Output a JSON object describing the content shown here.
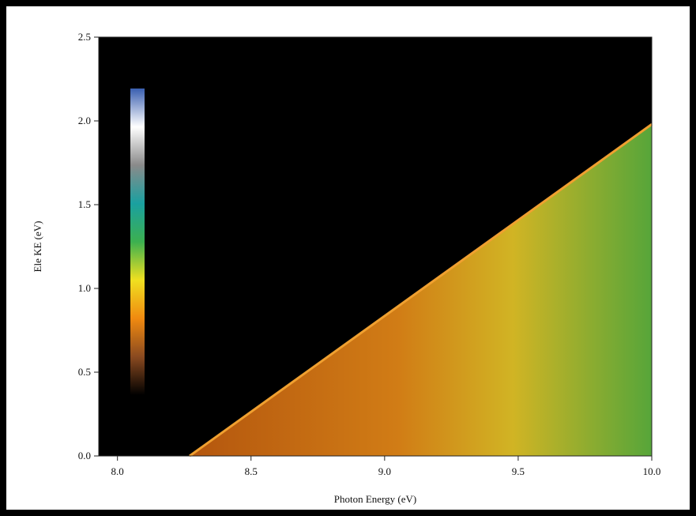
{
  "chart_data": {
    "type": "heatmap",
    "x_label": "Photon Energy (eV)",
    "y_label": "Ele KE (eV)",
    "x": [
      8.27,
      10.0
    ],
    "values": [
      0,
      1.98
    ],
    "xlim": [
      7.93,
      10.0
    ],
    "xticks": [
      {
        "value": 8.0,
        "label": "8.0"
      },
      8.5,
      {
        "value": 9.0,
        "label": "9.0"
      },
      9.5,
      {
        "value": 10.0,
        "label": "10.0"
      }
    ],
    "ylim": [
      0,
      2.5
    ],
    "yticks": [
      {
        "value": 0,
        "label": "0.0"
      },
      0.5,
      {
        "value": 1,
        "label": "1.0"
      },
      1.5,
      {
        "value": 2,
        "label": "2.0"
      },
      2.5
    ],
    "colormap": [
      "#3a5fb0",
      "#ffffff",
      "#8a8a8a",
      "#1aa0a0",
      "#3cb050",
      "#f0e020",
      "#f08a10",
      "#8a4a20",
      "#000000"
    ]
  }
}
